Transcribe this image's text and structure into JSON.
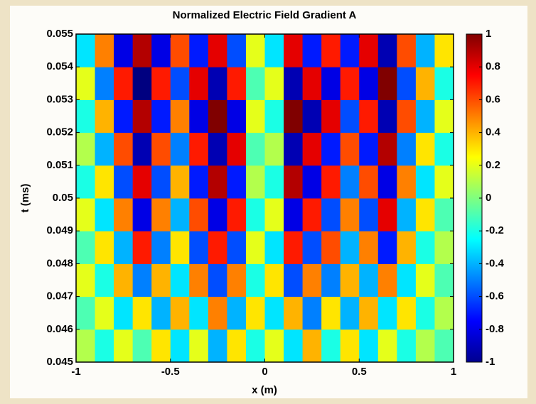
{
  "chart_data": {
    "type": "heatmap",
    "title": "Normalized Electric Field Gradient A",
    "x_label": "x (m)",
    "y_label": "t (ms)",
    "x": [
      -0.95,
      -0.85,
      -0.75,
      -0.65,
      -0.55,
      -0.45,
      -0.35,
      -0.25,
      -0.15,
      -0.05,
      0.05,
      0.15,
      0.25,
      0.35,
      0.45,
      0.55,
      0.65,
      0.75,
      0.85,
      0.95
    ],
    "y": [
      0.0455,
      0.0465,
      0.0475,
      0.0485,
      0.0495,
      0.0505,
      0.0515,
      0.0525,
      0.0535,
      0.0545
    ],
    "z": [
      [
        0.1,
        -0.2,
        0.2,
        -0.1,
        0.3,
        -0.3,
        0.2,
        -0.4,
        0.3,
        -0.2,
        0.2,
        -0.3,
        0.4,
        -0.2,
        0.3,
        -0.3,
        0.2,
        -0.2,
        0.1,
        -0.1
      ],
      [
        -0.1,
        0.2,
        -0.3,
        0.3,
        -0.4,
        0.4,
        -0.3,
        0.5,
        -0.4,
        0.3,
        -0.3,
        0.4,
        -0.5,
        0.3,
        -0.4,
        0.4,
        -0.3,
        0.3,
        -0.2,
        0.1
      ],
      [
        0.2,
        -0.2,
        0.4,
        -0.5,
        0.4,
        -0.3,
        0.5,
        -0.6,
        0.5,
        -0.2,
        0.3,
        -0.6,
        0.5,
        -0.5,
        0.4,
        -0.4,
        0.5,
        -0.3,
        0.2,
        -0.1
      ],
      [
        -0.1,
        0.3,
        -0.4,
        0.7,
        -0.5,
        0.3,
        -0.6,
        0.7,
        -0.6,
        0.2,
        -0.3,
        0.7,
        -0.6,
        0.6,
        -0.4,
        0.5,
        -0.7,
        0.4,
        -0.2,
        0.1
      ],
      [
        0.2,
        -0.3,
        0.5,
        -0.8,
        0.5,
        -0.4,
        0.6,
        -0.8,
        0.7,
        -0.2,
        0.2,
        -0.8,
        0.7,
        -0.6,
        0.5,
        -0.6,
        0.8,
        -0.4,
        0.3,
        -0.1
      ],
      [
        -0.2,
        0.3,
        -0.6,
        0.8,
        -0.6,
        0.4,
        -0.7,
        0.9,
        -0.7,
        0.1,
        -0.2,
        0.9,
        -0.8,
        0.7,
        -0.5,
        0.6,
        -0.8,
        0.5,
        -0.3,
        0.2
      ],
      [
        0.1,
        -0.4,
        0.6,
        -0.9,
        0.6,
        -0.5,
        0.7,
        -0.9,
        0.8,
        -0.1,
        0.1,
        -0.9,
        0.8,
        -0.7,
        0.6,
        -0.7,
        0.9,
        -0.5,
        0.3,
        -0.2
      ],
      [
        -0.2,
        0.4,
        -0.7,
        0.9,
        -0.7,
        0.5,
        -0.8,
        1.0,
        -0.8,
        0.2,
        -0.2,
        1.0,
        -0.9,
        0.8,
        -0.6,
        0.7,
        -0.9,
        0.6,
        -0.4,
        0.2
      ],
      [
        0.2,
        -0.5,
        0.7,
        -1.0,
        0.7,
        -0.6,
        0.8,
        -0.9,
        0.7,
        -0.1,
        0.2,
        -0.9,
        0.8,
        -0.8,
        0.7,
        -0.8,
        1.0,
        -0.6,
        0.4,
        -0.2
      ],
      [
        -0.3,
        0.5,
        -0.8,
        0.9,
        -0.8,
        0.6,
        -0.7,
        0.8,
        -0.6,
        0.2,
        -0.3,
        0.8,
        -0.7,
        0.7,
        -0.7,
        0.8,
        -0.9,
        0.6,
        -0.4,
        0.3
      ]
    ],
    "colormap": "jet",
    "xlim": [
      -1,
      1
    ],
    "xticks": [
      -1,
      -0.5,
      0,
      0.5,
      1
    ],
    "ylim": [
      0.045,
      0.055
    ],
    "yticks": [
      0.045,
      0.046,
      0.047,
      0.048,
      0.049,
      0.05,
      0.051,
      0.052,
      0.053,
      0.054,
      0.055
    ],
    "clim": [
      -1,
      1
    ],
    "cticks": [
      -1,
      -0.8,
      -0.6,
      -0.4,
      -0.2,
      0,
      0.2,
      0.4,
      0.6,
      0.8,
      1
    ]
  }
}
